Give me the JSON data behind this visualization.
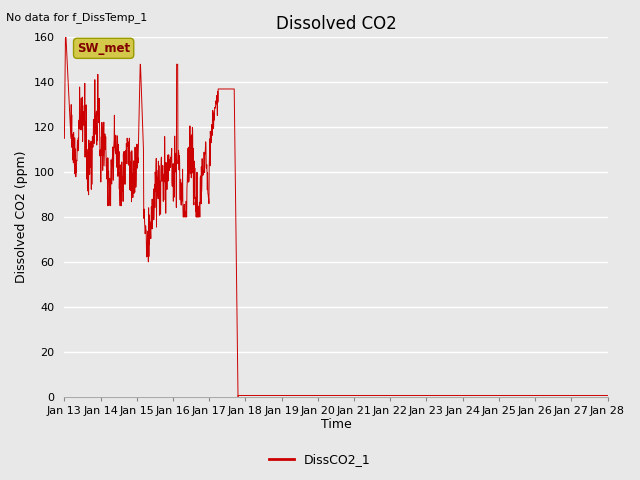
{
  "title": "Dissolved CO2",
  "subtitle": "No data for f_DissTemp_1",
  "ylabel": "Dissolved CO2 (ppm)",
  "xlabel": "Time",
  "legend_label": "DissCO2_1",
  "legend_color": "#cc0000",
  "ylim": [
    0,
    160
  ],
  "yticks": [
    0,
    20,
    40,
    60,
    80,
    100,
    120,
    140,
    160
  ],
  "xtick_labels": [
    "Jan 13",
    "Jan 14",
    "Jan 15",
    "Jan 16",
    "Jan 17",
    "Jan 18",
    "Jan 19",
    "Jan 20",
    "Jan 21",
    "Jan 22",
    "Jan 23",
    "Jan 24",
    "Jan 25",
    "Jan 26",
    "Jan 27",
    "Jan 28"
  ],
  "background_color": "#e8e8e8",
  "sw_met_box_color": "#d4c84a",
  "sw_met_text_color": "#800000",
  "line_color": "#cc0000",
  "title_fontsize": 12,
  "axis_fontsize": 9,
  "tick_fontsize": 8
}
